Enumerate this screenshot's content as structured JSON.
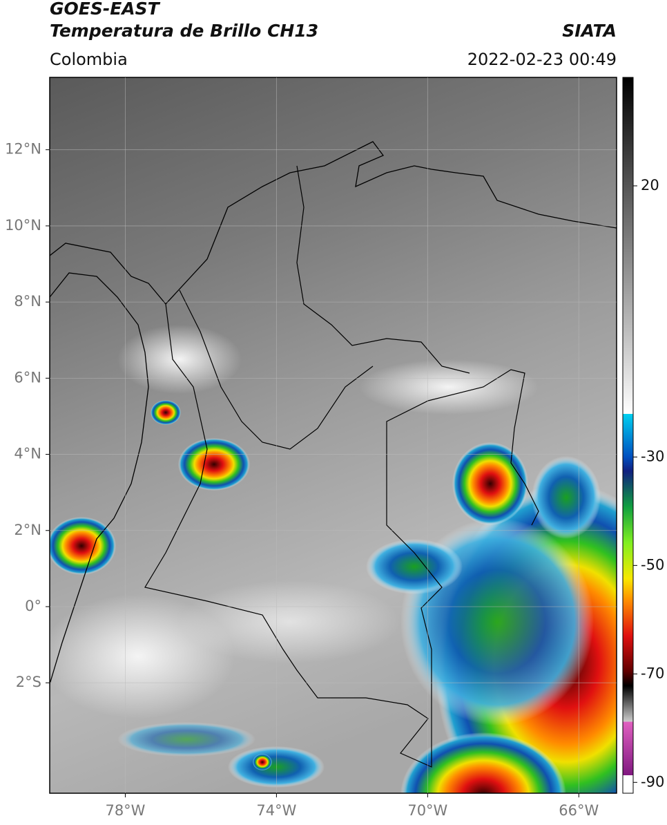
{
  "header": {
    "satellite": "GOES-EAST",
    "title": "Temperatura de Brillo CH13",
    "source": "SIATA",
    "region": "Colombia",
    "datetime": "2022-02-23 00:49"
  },
  "map": {
    "xlim": [
      -80,
      -65
    ],
    "ylim": [
      -4.9,
      13.9
    ],
    "xticks": [
      {
        "value": -78,
        "label": "78°W"
      },
      {
        "value": -74,
        "label": "74°W"
      },
      {
        "value": -70,
        "label": "70°W"
      },
      {
        "value": -66,
        "label": "66°W"
      }
    ],
    "yticks": [
      {
        "value": 12,
        "label": "12°N"
      },
      {
        "value": 10,
        "label": "10°N"
      },
      {
        "value": 8,
        "label": "8°N"
      },
      {
        "value": 6,
        "label": "6°N"
      },
      {
        "value": 4,
        "label": "4°N"
      },
      {
        "value": 2,
        "label": "2°N"
      },
      {
        "value": 0,
        "label": "0°"
      },
      {
        "value": -2,
        "label": "2°S"
      }
    ],
    "grid": true
  },
  "colorbar": {
    "lim": [
      -92,
      40
    ],
    "ticks": [
      20,
      -30,
      -50,
      -70,
      -90
    ]
  }
}
